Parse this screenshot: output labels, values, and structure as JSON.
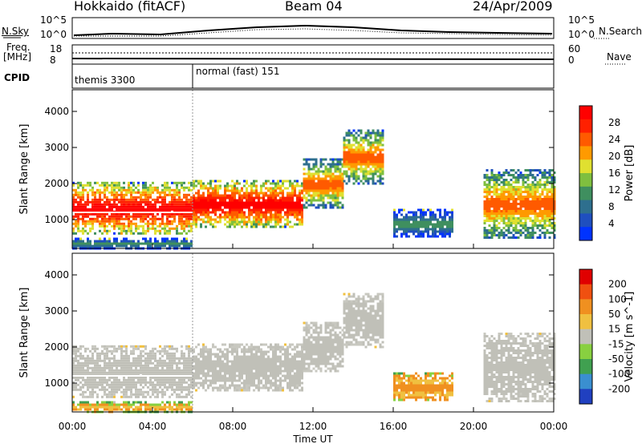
{
  "header": {
    "station": "Hokkaido (fitACF)",
    "beam": "Beam 04",
    "date": "24/Apr/2009"
  },
  "top_panels": {
    "nsky_label": "N.Sky",
    "nsearch_label": "N.Search",
    "noise_ticks_left": [
      "10^5",
      "10^0"
    ],
    "noise_ticks_right": [
      "10^5",
      "10^0"
    ],
    "freq_label": "Freq.",
    "freq_unit": "[MHz]",
    "freq_ticks": [
      "18",
      "8"
    ],
    "nave_label": "Nave",
    "nave_ticks": [
      "60",
      "0"
    ],
    "cpid_label": "CPID",
    "cpid_segments": [
      {
        "name": "themis 3300",
        "start_hour": 0,
        "end_hour": 6
      },
      {
        "name": "normal (fast) 151",
        "start_hour": 6,
        "end_hour": 24
      }
    ]
  },
  "chart_data": [
    {
      "type": "heatmap",
      "name": "power",
      "ylabel": "Slant Range [km]",
      "yticks": [
        "1000",
        "2000",
        "3000",
        "4000"
      ],
      "ylim": [
        200,
        4600
      ],
      "xlim": [
        0,
        24
      ],
      "colorbar_label": "Power [dB]",
      "colorbar_ticks": [
        "4",
        "8",
        "12",
        "16",
        "20",
        "24",
        "28"
      ],
      "colorbar_colors": [
        "#0033ff",
        "#1f4fbf",
        "#2e6f8e",
        "#3f8f5f",
        "#7fbf3f",
        "#e0e030",
        "#ff9a00",
        "#ff5a00",
        "#ff2000",
        "#ff0000"
      ],
      "regions": [
        {
          "t0": 0.0,
          "t1": 6.0,
          "r0": 600,
          "r1": 2050,
          "level": "high"
        },
        {
          "t0": 6.0,
          "t1": 11.5,
          "r0": 800,
          "r1": 2100,
          "level": "high"
        },
        {
          "t0": 11.5,
          "t1": 13.5,
          "r0": 1300,
          "r1": 2700,
          "level": "mid"
        },
        {
          "t0": 13.5,
          "t1": 15.5,
          "r0": 2000,
          "r1": 3500,
          "level": "mid"
        },
        {
          "t0": 16.0,
          "t1": 19.0,
          "r0": 500,
          "r1": 1300,
          "level": "low"
        },
        {
          "t0": 20.5,
          "t1": 24.0,
          "r0": 500,
          "r1": 2400,
          "level": "mid"
        },
        {
          "t0": 0.0,
          "t1": 6.0,
          "r0": 200,
          "r1": 500,
          "level": "low"
        }
      ]
    },
    {
      "type": "heatmap",
      "name": "velocity",
      "ylabel": "Slant Range [km]",
      "yticks": [
        "1000",
        "2000",
        "3000",
        "4000"
      ],
      "ylim": [
        200,
        4600
      ],
      "xlim": [
        0,
        24
      ],
      "xlabel": "Time UT",
      "xticks": [
        "00:00",
        "04:00",
        "08:00",
        "12:00",
        "16:00",
        "20:00",
        "00:00"
      ],
      "colorbar_label": "Velocity [m s^-1]",
      "colorbar_ticks": [
        "200",
        "100",
        "50",
        "15",
        "-15",
        "-50",
        "-100",
        "-200"
      ],
      "colorbar_colors": [
        "#2040c0",
        "#3a8fd0",
        "#40a050",
        "#88d040",
        "#c0c0b8",
        "#f0c040",
        "#f09020",
        "#f05010",
        "#e00000"
      ],
      "regions": [
        {
          "t0": 0.0,
          "t1": 6.0,
          "r0": 600,
          "r1": 2050,
          "value": "gray"
        },
        {
          "t0": 6.0,
          "t1": 11.5,
          "r0": 800,
          "r1": 2100,
          "value": "gray"
        },
        {
          "t0": 11.5,
          "t1": 13.5,
          "r0": 1300,
          "r1": 2700,
          "value": "gray"
        },
        {
          "t0": 13.5,
          "t1": 15.5,
          "r0": 2000,
          "r1": 3500,
          "value": "gray"
        },
        {
          "t0": 16.0,
          "t1": 19.0,
          "r0": 500,
          "r1": 1300,
          "value": "orange"
        },
        {
          "t0": 20.5,
          "t1": 24.0,
          "r0": 500,
          "r1": 2400,
          "value": "gray"
        },
        {
          "t0": 0.0,
          "t1": 6.0,
          "r0": 200,
          "r1": 500,
          "value": "yellow"
        }
      ]
    }
  ]
}
